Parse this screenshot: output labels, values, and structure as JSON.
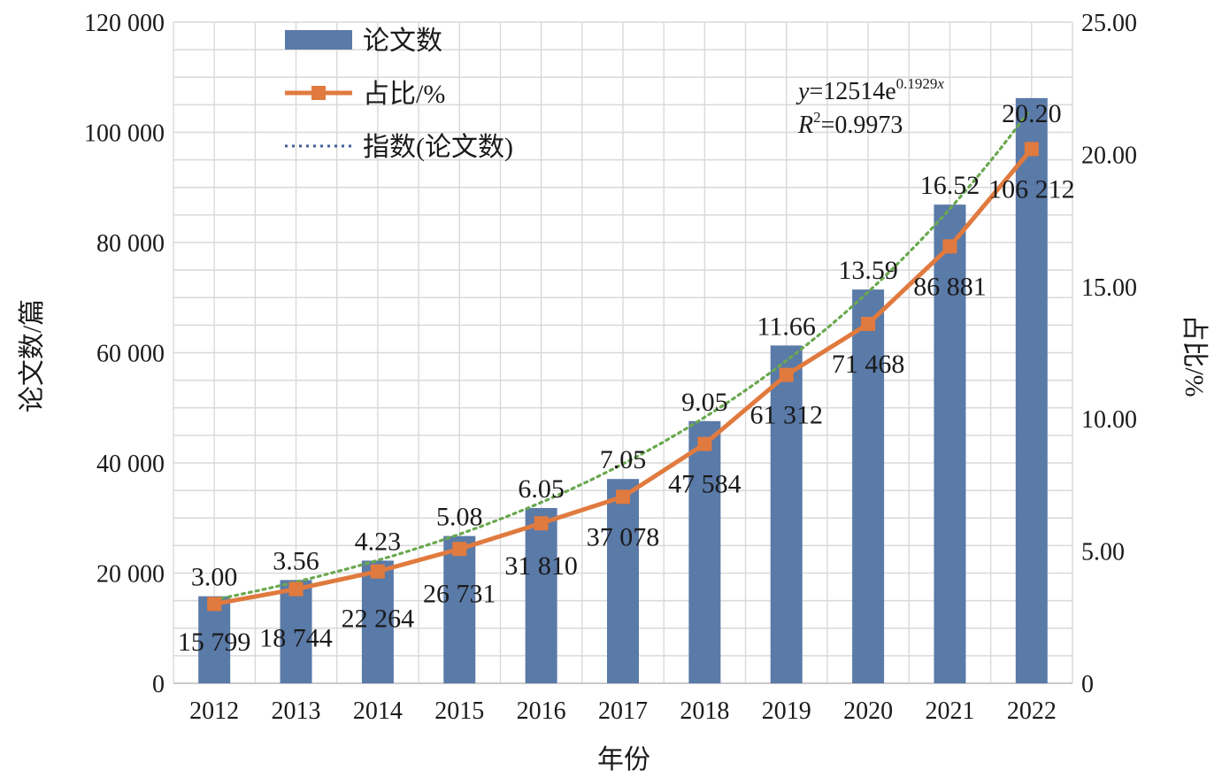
{
  "chart_data": {
    "type": "bar",
    "categories": [
      "2012",
      "2013",
      "2014",
      "2015",
      "2016",
      "2017",
      "2018",
      "2019",
      "2020",
      "2021",
      "2022"
    ],
    "series": [
      {
        "name": "论文数",
        "type": "bar",
        "axis": "left",
        "values": [
          15799,
          18744,
          22264,
          26731,
          31810,
          37078,
          47584,
          61312,
          71468,
          86881,
          106212
        ],
        "labels": [
          "15 799",
          "18 744",
          "22 264",
          "26 731",
          "31 810",
          "37 078",
          "47 584",
          "61 312",
          "71 468",
          "86 881",
          "106 212"
        ]
      },
      {
        "name": "占比/%",
        "type": "line",
        "axis": "right",
        "values": [
          3.0,
          3.56,
          4.23,
          5.08,
          6.05,
          7.05,
          9.05,
          11.66,
          13.59,
          16.52,
          20.2
        ],
        "labels": [
          "3.00",
          "3.56",
          "4.23",
          "5.08",
          "6.05",
          "7.05",
          "9.05",
          "11.66",
          "13.59",
          "16.52",
          "20.20"
        ]
      },
      {
        "name": "指数(论文数)",
        "type": "trendline",
        "axis": "left",
        "model": "exponential",
        "a": 12514,
        "b": 0.1929
      }
    ],
    "xlabel": "年份",
    "ylabel": "论文数/篇",
    "y2label": "占比/%",
    "ylim": [
      0,
      120000
    ],
    "y2lim": [
      0,
      25
    ],
    "yticks": [
      "0",
      "20 000",
      "40 000",
      "60 000",
      "80 000",
      "100 000",
      "120 000"
    ],
    "y2ticks": [
      "0",
      "5.00",
      "10.00",
      "15.00",
      "20.00",
      "25.00"
    ],
    "grid": true,
    "legend_position": "top-left",
    "annotation": {
      "y_var": "y",
      "eq_base": "=12514e",
      "eq_exp_num": "0.1929",
      "eq_exp_var": "x",
      "r_var": "R",
      "r_sup": "2",
      "r_value": "=0.9973"
    },
    "colors": {
      "bar": "#5a7aa8",
      "line": "#e07a3e",
      "trend": "#6aa84f",
      "legend_trend": "#3f5f97",
      "grid": "#d9d9d9"
    }
  }
}
